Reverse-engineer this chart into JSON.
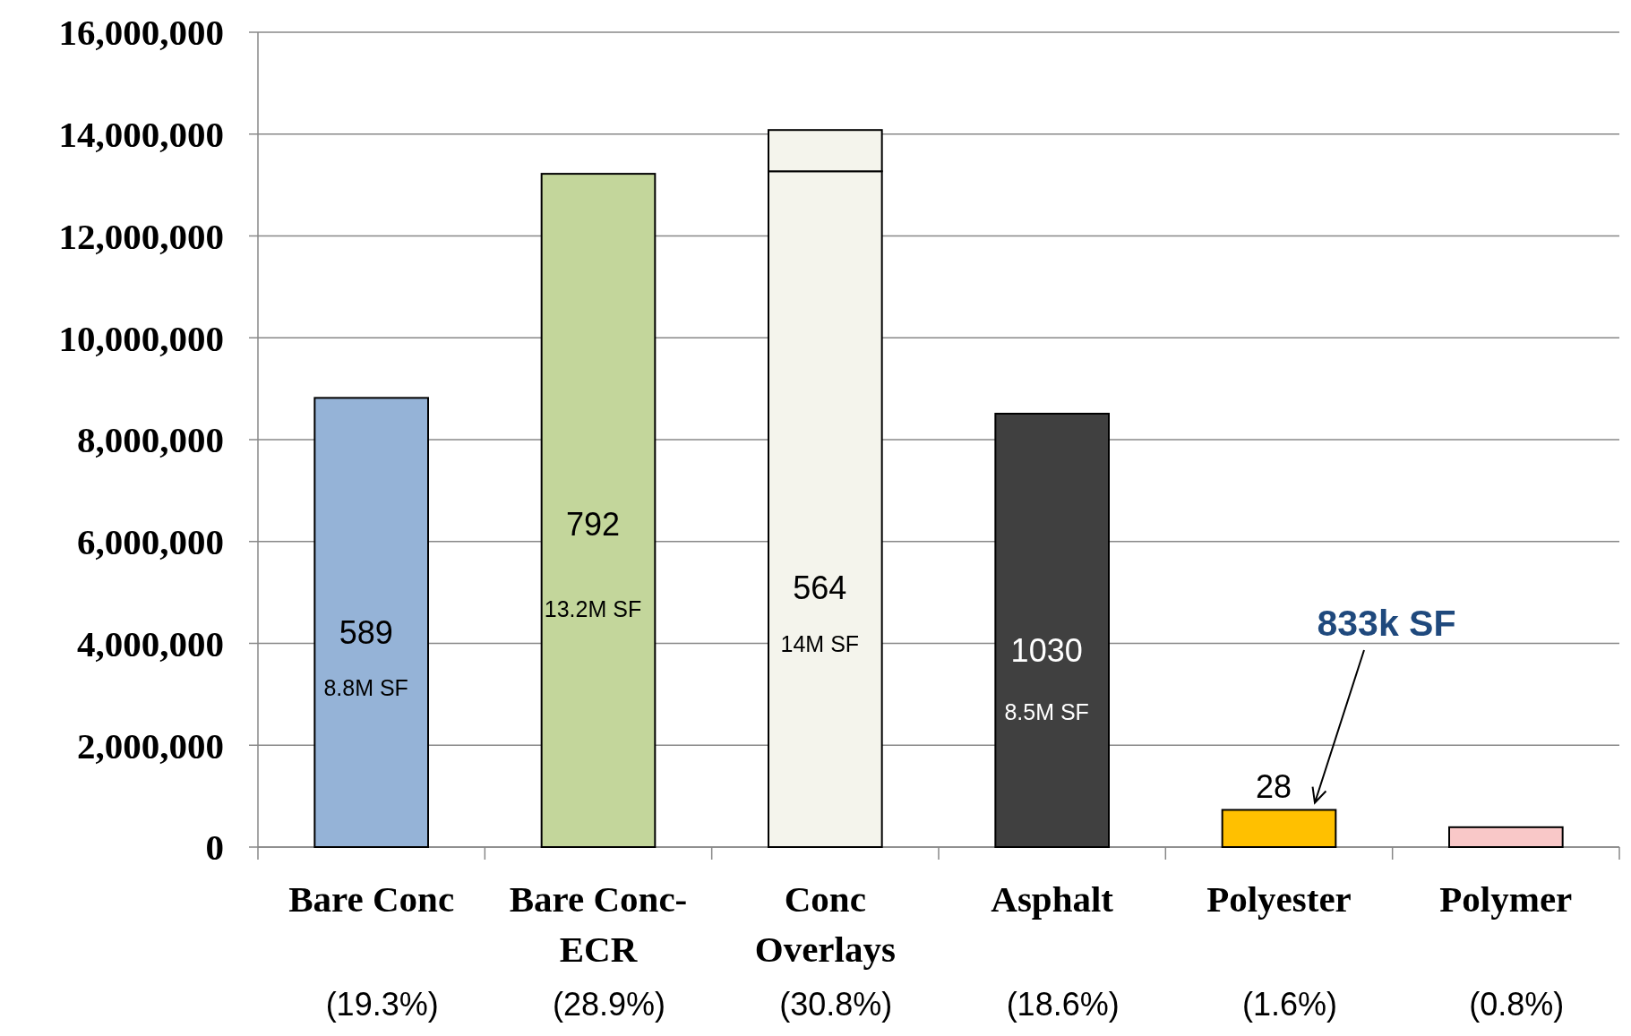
{
  "chart_data": {
    "type": "bar",
    "stacked": true,
    "categories": [
      "Bare Conc",
      "Bare Conc-ECR",
      "Conc Overlays",
      "Asphalt",
      "Polyester",
      "Polymer"
    ],
    "series": [
      {
        "colors": [
          "#95b3d7",
          "#c3d69b",
          "#f4f4ec",
          "#404040",
          "#ffc000",
          "#f9c8c8"
        ],
        "values": [
          8820000,
          13220000,
          13270000,
          8510000,
          730000,
          390000
        ]
      },
      {
        "color": "#f4f4ec",
        "values": [
          null,
          null,
          810000,
          null,
          null,
          null
        ]
      }
    ],
    "ylim": [
      0,
      16000000
    ],
    "yticks": [
      {
        "value": 0,
        "label": "0"
      },
      {
        "value": 2000000,
        "label": "2,000,000"
      },
      {
        "value": 4000000,
        "label": "4,000,000"
      },
      {
        "value": 6000000,
        "label": "6,000,000"
      },
      {
        "value": 8000000,
        "label": "8,000,000"
      },
      {
        "value": 10000000,
        "label": "10,000,000"
      },
      {
        "value": 12000000,
        "label": "12,000,000"
      },
      {
        "value": 14000000,
        "label": "14,000,000"
      },
      {
        "value": 16000000,
        "label": "16,000,000"
      }
    ],
    "grid": "y",
    "annotations": [
      "589",
      "8.8M SF",
      "792",
      "13.2M SF",
      "564",
      "14M SF",
      "1030",
      "8.5M SF",
      "28",
      "833k SF",
      "(19.3%)",
      "(28.9%)",
      "(30.8%)",
      "(18.6%)",
      "(1.6%)",
      "(0.8%)"
    ]
  }
}
